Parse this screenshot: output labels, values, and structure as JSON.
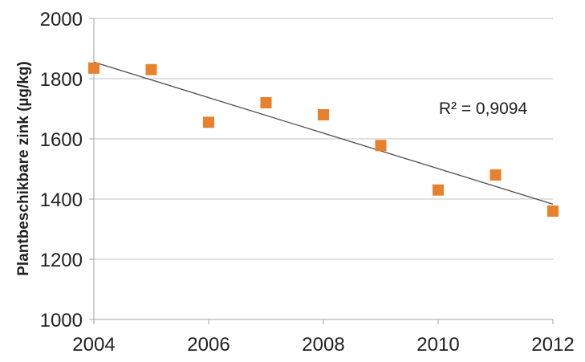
{
  "chart_data": {
    "type": "scatter",
    "title": "",
    "xlabel": "",
    "ylabel": "Plantbeschikbare zink (µg/kg)",
    "x": [
      2004,
      2005,
      2006,
      2007,
      2008,
      2009,
      2010,
      2011,
      2012
    ],
    "values": [
      1835,
      1830,
      1655,
      1720,
      1680,
      1578,
      1430,
      1480,
      1360
    ],
    "xlim": [
      2004,
      2012
    ],
    "ylim": [
      1000,
      2000
    ],
    "x_ticks": [
      2004,
      2006,
      2008,
      2010,
      2012
    ],
    "y_ticks": [
      2000,
      1800,
      1600,
      1400,
      1200,
      1000
    ],
    "grid": "horizontal",
    "legend": "none",
    "annotation": "R² = 0,9094",
    "trendline": {
      "type": "linear",
      "x1": 2004,
      "y1": 1855,
      "x2": 2012,
      "y2": 1383,
      "r_squared": "0,9094"
    },
    "colors": {
      "marker": "#E8812D",
      "trendline": "#4D4D4D",
      "gridline": "#C3C3C3",
      "axis": "#A6A6A6",
      "text": "#212121",
      "background": "#FFFFFF"
    }
  }
}
